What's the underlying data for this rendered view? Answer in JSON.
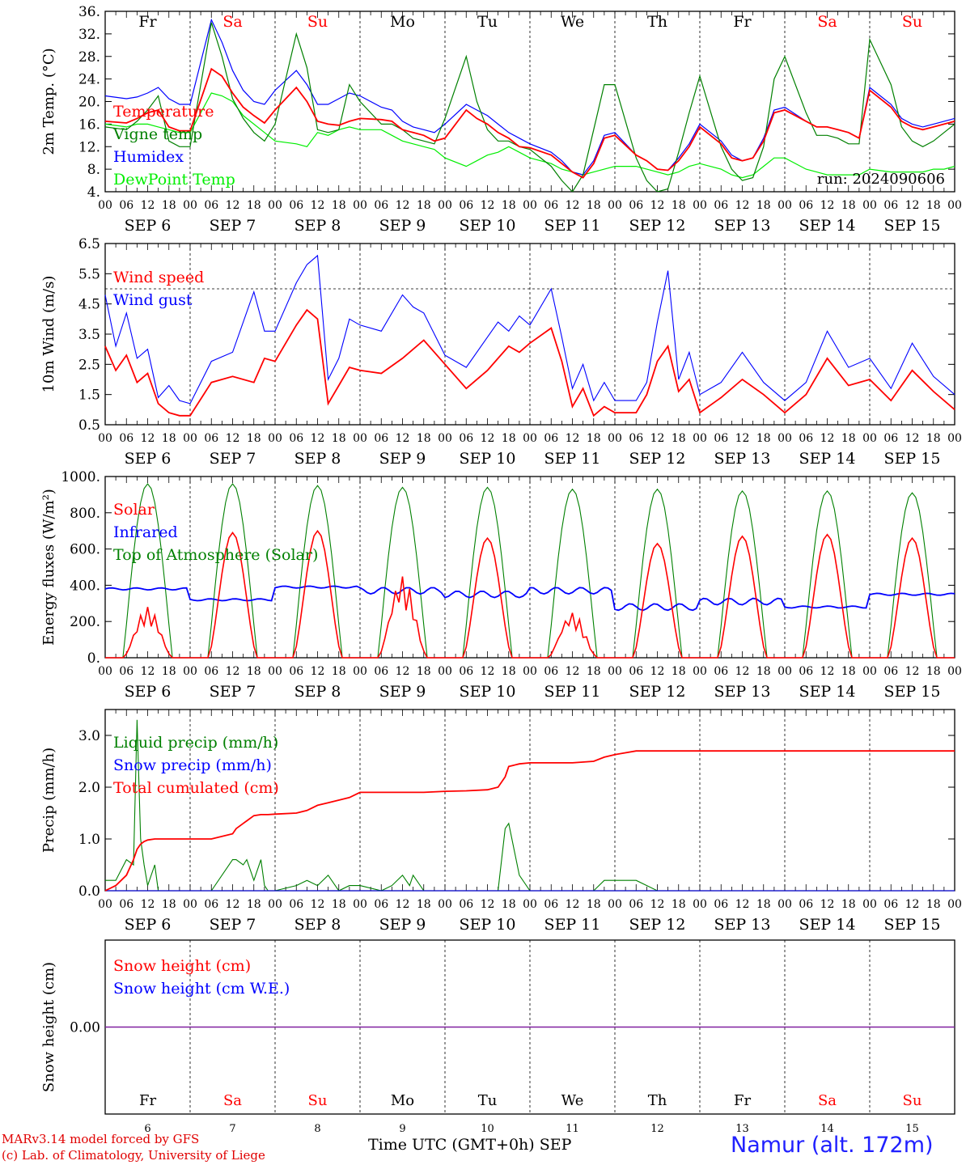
{
  "footer": {
    "credit_line1": "MARv3.14 model forced by GFS",
    "credit_line2": "(c) Lab. of Climatology, University of Liege",
    "xaxis_title": "Time UTC (GMT+0h) SEP",
    "station": "Namur (alt. 172m)"
  },
  "chart_data": [
    {
      "type": "line",
      "title": "",
      "ylabel": "2m Temp. (°C)",
      "ylim": [
        4,
        36
      ],
      "yticks": [
        "4.",
        "8.",
        "12.",
        "16.",
        "20.",
        "24.",
        "28.",
        "32.",
        "36."
      ],
      "weekdays": [
        "Fr",
        "Sa",
        "Su",
        "Mo",
        "Tu",
        "We",
        "Th",
        "Fr",
        "Sa",
        "Su"
      ],
      "weekend_color": "#ff0000",
      "x_hour_labels": [
        "00",
        "06",
        "12",
        "18"
      ],
      "x_day_labels": [
        "SEP 6",
        "SEP 7",
        "SEP 8",
        "SEP 9",
        "SEP 10",
        "SEP 11",
        "SEP 12",
        "SEP 13",
        "SEP 14",
        "SEP 15"
      ],
      "annotation": "run: 2024090606",
      "x_hours": [
        0,
        6,
        9,
        12,
        15,
        18,
        21,
        24,
        30,
        33,
        36,
        39,
        42,
        45,
        48,
        54,
        57,
        60,
        63,
        66,
        69,
        72,
        78,
        81,
        84,
        87,
        90,
        93,
        96,
        102,
        105,
        108,
        111,
        114,
        117,
        120,
        126,
        129,
        132,
        135,
        138,
        141,
        144,
        150,
        153,
        156,
        159,
        162,
        165,
        168,
        174,
        177,
        180,
        183,
        186,
        189,
        192,
        198,
        201,
        204,
        207,
        210,
        213,
        216,
        222,
        225,
        228,
        231,
        234,
        237,
        240
      ],
      "series": [
        {
          "name": "Temperature",
          "color": "#ff0000",
          "values": [
            16.5,
            16.2,
            17.0,
            18.0,
            18.5,
            15.5,
            14.8,
            14.8,
            25.8,
            24.5,
            21.5,
            19.0,
            17.5,
            16.2,
            18.5,
            22.5,
            20.0,
            16.5,
            16.0,
            15.8,
            16.5,
            17.0,
            16.8,
            16.5,
            15.0,
            14.5,
            14.0,
            13.0,
            13.5,
            18.5,
            17.0,
            16.0,
            14.5,
            13.5,
            12.0,
            11.8,
            10.5,
            9.0,
            7.5,
            6.5,
            9.0,
            13.5,
            14.0,
            10.5,
            9.5,
            8.0,
            7.8,
            9.5,
            12.0,
            15.5,
            12.5,
            10.0,
            9.5,
            10.0,
            13.0,
            18.0,
            18.5,
            16.5,
            15.5,
            15.5,
            15.0,
            14.5,
            13.5,
            22.0,
            19.0,
            16.5,
            15.5,
            15.0,
            15.5,
            16.0,
            16.5
          ]
        },
        {
          "name": "Vigne temp",
          "color": "#008000",
          "values": [
            15.5,
            15.0,
            16.5,
            18.5,
            21.0,
            13.0,
            12.0,
            12.0,
            34.0,
            28.0,
            20.5,
            17.0,
            14.5,
            13.0,
            16.0,
            32.0,
            26.0,
            15.0,
            14.5,
            15.0,
            23.0,
            20.0,
            16.0,
            16.0,
            15.0,
            13.5,
            13.0,
            12.5,
            17.0,
            28.0,
            20.0,
            15.0,
            13.0,
            13.0,
            12.0,
            11.5,
            8.5,
            6.0,
            4.0,
            7.0,
            15.0,
            23.0,
            23.0,
            10.0,
            6.0,
            4.0,
            4.5,
            11.0,
            18.0,
            24.5,
            12.0,
            8.0,
            6.0,
            6.5,
            12.0,
            24.0,
            28.0,
            18.0,
            14.0,
            14.0,
            13.5,
            12.5,
            12.5,
            31.0,
            23.0,
            15.5,
            13.0,
            12.0,
            13.0,
            14.5,
            16.0
          ]
        },
        {
          "name": "Humidex",
          "color": "#0000ff",
          "values": [
            21.0,
            20.5,
            20.8,
            21.5,
            22.5,
            20.5,
            19.5,
            19.5,
            34.5,
            30.5,
            25.5,
            22.0,
            20.0,
            19.5,
            22.0,
            25.5,
            23.0,
            19.5,
            19.5,
            20.5,
            21.5,
            21.0,
            19.0,
            18.5,
            16.5,
            15.5,
            15.0,
            14.5,
            16.0,
            19.5,
            18.5,
            17.5,
            16.0,
            14.5,
            13.5,
            12.5,
            11.0,
            9.5,
            7.5,
            7.0,
            9.5,
            14.0,
            14.5,
            10.5,
            9.5,
            8.0,
            7.8,
            10.0,
            12.5,
            16.0,
            13.0,
            10.5,
            9.5,
            10.0,
            13.5,
            18.5,
            19.0,
            16.5,
            15.5,
            15.5,
            15.0,
            14.5,
            13.5,
            22.5,
            19.5,
            17.0,
            16.0,
            15.5,
            16.0,
            16.5,
            17.0
          ]
        },
        {
          "name": "DewPoint Temp",
          "color": "#00ee00",
          "values": [
            16.0,
            15.5,
            16.0,
            16.0,
            15.5,
            15.0,
            14.5,
            14.5,
            21.5,
            21.0,
            20.0,
            17.5,
            16.0,
            14.5,
            13.0,
            12.5,
            12.0,
            14.5,
            14.0,
            15.0,
            15.5,
            15.0,
            15.0,
            14.0,
            13.0,
            12.5,
            12.0,
            11.5,
            10.0,
            8.5,
            9.5,
            10.5,
            11.0,
            12.0,
            11.0,
            10.0,
            9.0,
            8.0,
            7.5,
            7.0,
            7.5,
            8.0,
            8.5,
            8.5,
            8.0,
            7.5,
            7.0,
            7.5,
            8.5,
            9.0,
            8.0,
            7.0,
            6.5,
            7.0,
            8.5,
            10.0,
            10.0,
            8.0,
            7.5,
            7.0,
            7.0,
            7.0,
            7.0,
            8.0,
            7.5,
            7.5,
            7.5,
            7.5,
            8.0,
            8.0,
            8.5
          ]
        }
      ]
    },
    {
      "type": "line",
      "title": "",
      "ylabel": "10m Wind (m/s)",
      "ylim": [
        0.5,
        6.5
      ],
      "yticks": [
        "0.5",
        "1.5",
        "2.5",
        "3.5",
        "4.5",
        "5.5",
        "6.5"
      ],
      "reference_line": 5.0,
      "x_hour_labels": [
        "00",
        "06",
        "12",
        "18"
      ],
      "x_day_labels": [
        "SEP 6",
        "SEP 7",
        "SEP 8",
        "SEP 9",
        "SEP 10",
        "SEP 11",
        "SEP 12",
        "SEP 13",
        "SEP 14",
        "SEP 15"
      ],
      "x_hours": [
        0,
        3,
        6,
        9,
        12,
        15,
        18,
        21,
        24,
        30,
        36,
        42,
        45,
        48,
        54,
        57,
        60,
        63,
        66,
        69,
        72,
        78,
        84,
        87,
        90,
        96,
        102,
        108,
        111,
        114,
        117,
        120,
        126,
        129,
        132,
        135,
        138,
        141,
        144,
        150,
        153,
        156,
        159,
        162,
        165,
        168,
        174,
        180,
        186,
        192,
        198,
        204,
        210,
        216,
        222,
        228,
        234,
        240
      ],
      "series": [
        {
          "name": "Wind speed",
          "color": "#ff0000",
          "values": [
            3.1,
            2.3,
            2.8,
            1.9,
            2.2,
            1.2,
            0.9,
            0.8,
            0.8,
            1.9,
            2.1,
            1.9,
            2.7,
            2.6,
            3.8,
            4.3,
            4.0,
            1.2,
            1.8,
            2.4,
            2.3,
            2.2,
            2.7,
            3.0,
            3.3,
            2.5,
            1.7,
            2.3,
            2.7,
            3.1,
            2.9,
            3.2,
            3.7,
            2.6,
            1.1,
            1.7,
            0.8,
            1.1,
            0.9,
            0.9,
            1.5,
            2.6,
            3.1,
            1.6,
            2.0,
            0.9,
            1.4,
            2.0,
            1.5,
            0.9,
            1.5,
            2.7,
            1.8,
            2.0,
            1.3,
            2.3,
            1.6,
            1.0
          ]
        },
        {
          "name": "Wind gust",
          "color": "#0000ff",
          "values": [
            4.8,
            3.1,
            4.2,
            2.7,
            3.0,
            1.4,
            1.8,
            1.3,
            1.2,
            2.6,
            2.9,
            4.9,
            3.6,
            3.6,
            5.2,
            5.8,
            6.1,
            2.0,
            2.7,
            4.0,
            3.8,
            3.6,
            4.8,
            4.4,
            4.2,
            2.8,
            2.4,
            3.4,
            3.9,
            3.6,
            4.1,
            3.8,
            5.0,
            3.4,
            1.7,
            2.5,
            1.3,
            1.9,
            1.3,
            1.3,
            1.9,
            3.9,
            5.6,
            2.0,
            2.9,
            1.5,
            1.9,
            2.9,
            1.9,
            1.3,
            1.9,
            3.6,
            2.4,
            2.7,
            1.7,
            3.2,
            2.1,
            1.5
          ]
        }
      ]
    },
    {
      "type": "line",
      "title": "",
      "ylabel": "Energy fluxes (W/m²)",
      "ylim": [
        0,
        1000
      ],
      "yticks": [
        "0.",
        "200.",
        "400.",
        "600.",
        "800.",
        "1000."
      ],
      "x_hour_labels": [
        "00",
        "06",
        "12",
        "18"
      ],
      "x_day_labels": [
        "SEP 6",
        "SEP 7",
        "SEP 8",
        "SEP 9",
        "SEP 10",
        "SEP 11",
        "SEP 12",
        "SEP 13",
        "SEP 14",
        "SEP 15"
      ],
      "toa_peaks": [
        960,
        960,
        950,
        940,
        940,
        930,
        930,
        920,
        920,
        910
      ],
      "solar_peaks": [
        280,
        690,
        700,
        450,
        660,
        250,
        630,
        670,
        680,
        660
      ],
      "infrared_levels": [
        380,
        320,
        390,
        370,
        350,
        370,
        280,
        310,
        280,
        350
      ],
      "series": [
        {
          "name": "Solar",
          "color": "#ff0000"
        },
        {
          "name": "Infrared",
          "color": "#0000ff"
        },
        {
          "name": "Top of Atmosphere (Solar)",
          "color": "#008000"
        }
      ]
    },
    {
      "type": "line",
      "title": "",
      "ylabel": "Precip (mm/h)",
      "ylim": [
        0,
        3.5
      ],
      "yticks": [
        "0.0",
        "1.0",
        "2.0",
        "3.0"
      ],
      "x_hour_labels": [
        "00",
        "06",
        "12",
        "18"
      ],
      "x_day_labels": [
        "SEP 6",
        "SEP 7",
        "SEP 8",
        "SEP 9",
        "SEP 10",
        "SEP 11",
        "SEP 12",
        "SEP 13",
        "SEP 14",
        "SEP 15"
      ],
      "x_hours": [
        0,
        3,
        6,
        8,
        9,
        10,
        11,
        12,
        14,
        15,
        16,
        18,
        24,
        30,
        36,
        37,
        39,
        40,
        42,
        44,
        45,
        46,
        48,
        54,
        57,
        60,
        63,
        66,
        69,
        72,
        78,
        81,
        84,
        86,
        87,
        90,
        96,
        102,
        108,
        111,
        113,
        114,
        117,
        120,
        126,
        132,
        138,
        141,
        144,
        150,
        156,
        168,
        180,
        240
      ],
      "series": [
        {
          "name": "Liquid precip (mm/h)",
          "color": "#008000",
          "values": [
            0.2,
            0.2,
            0.6,
            0.5,
            3.3,
            1.0,
            0.5,
            0.1,
            0.5,
            0.0,
            0.0,
            0.0,
            0.0,
            0.0,
            0.6,
            0.6,
            0.5,
            0.6,
            0.2,
            0.6,
            0.1,
            0.0,
            0.0,
            0.1,
            0.2,
            0.1,
            0.3,
            0.0,
            0.1,
            0.1,
            0.0,
            0.1,
            0.3,
            0.1,
            0.3,
            0.0,
            0.0,
            0.0,
            0.0,
            0.0,
            1.2,
            1.3,
            0.3,
            0.0,
            0.0,
            0.0,
            0.0,
            0.2,
            0.2,
            0.2,
            0.0,
            0.0,
            0.0,
            0.0
          ]
        },
        {
          "name": "Snow precip (mm/h)",
          "color": "#0000ff",
          "values": [
            0,
            0,
            0,
            0,
            0,
            0,
            0,
            0,
            0,
            0,
            0,
            0,
            0,
            0,
            0,
            0,
            0,
            0,
            0,
            0,
            0,
            0,
            0,
            0,
            0,
            0,
            0,
            0,
            0,
            0,
            0,
            0,
            0,
            0,
            0,
            0,
            0,
            0,
            0,
            0,
            0,
            0,
            0,
            0,
            0,
            0,
            0,
            0,
            0,
            0,
            0,
            0,
            0,
            0
          ]
        },
        {
          "name": "Total cumulated (cm)",
          "color": "#ff0000",
          "values": [
            0.0,
            0.1,
            0.3,
            0.6,
            0.8,
            0.9,
            0.95,
            0.98,
            1.0,
            1.0,
            1.0,
            1.0,
            1.0,
            1.0,
            1.1,
            1.2,
            1.3,
            1.35,
            1.45,
            1.47,
            1.47,
            1.47,
            1.48,
            1.5,
            1.55,
            1.65,
            1.7,
            1.75,
            1.8,
            1.9,
            1.9,
            1.9,
            1.9,
            1.9,
            1.9,
            1.9,
            1.92,
            1.93,
            1.95,
            2.0,
            2.2,
            2.4,
            2.45,
            2.47,
            2.47,
            2.47,
            2.5,
            2.58,
            2.63,
            2.7,
            2.7,
            2.7,
            2.7,
            2.7
          ]
        }
      ]
    },
    {
      "type": "line",
      "title": "",
      "ylabel": "Snow height (cm)",
      "ylim": [
        -1,
        1
      ],
      "yticks": [
        "0.00"
      ],
      "weekdays": [
        "Fr",
        "Sa",
        "Su",
        "Mo",
        "Tu",
        "We",
        "Th",
        "Fr",
        "Sa",
        "Su"
      ],
      "day_numbers": [
        "6",
        "7",
        "8",
        "9",
        "10",
        "11",
        "12",
        "13",
        "14",
        "15"
      ],
      "series": [
        {
          "name": "Snow height (cm)",
          "color": "#ff0000",
          "values": [
            0,
            0
          ]
        },
        {
          "name": "Snow height (cm W.E.)",
          "color": "#0000ff",
          "values": [
            0,
            0
          ]
        }
      ]
    }
  ]
}
